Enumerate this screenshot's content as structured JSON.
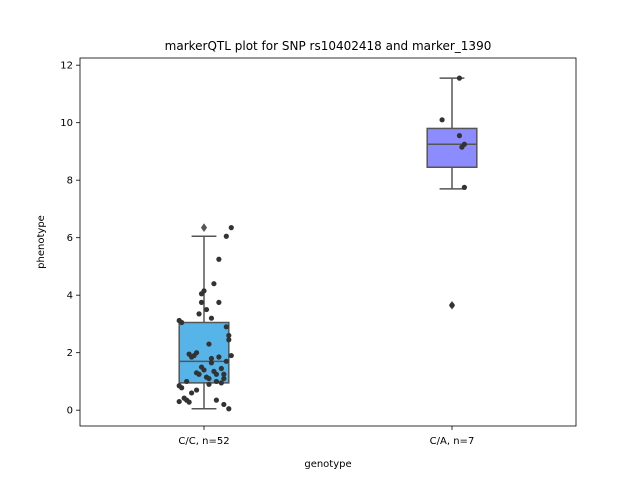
{
  "chart_data": {
    "type": "box",
    "title": "markerQTL plot for SNP rs10402418 and marker_1390",
    "xlabel": "genotype",
    "ylabel": "phenotype",
    "ylim": [
      -0.55,
      12.25
    ],
    "yticks": [
      0,
      2,
      4,
      6,
      8,
      10,
      12
    ],
    "grid": false,
    "categories": [
      "C/C, n=52",
      "C/A, n=7"
    ],
    "colors": [
      "#56b4e9",
      "#8c8cff"
    ],
    "box_edge_color": "#555555",
    "point_color": "#333333",
    "boxes": [
      {
        "category": "C/C, n=52",
        "q1": 0.95,
        "median": 1.7,
        "q3": 3.05,
        "whisker_low": 0.05,
        "whisker_high": 6.05,
        "fliers": [
          6.35
        ],
        "points": [
          {
            "j": -0.1,
            "y": 3.12
          },
          {
            "j": -0.09,
            "y": 3.05
          },
          {
            "j": -0.1,
            "y": 0.85
          },
          {
            "j": -0.09,
            "y": 0.78
          },
          {
            "j": -0.1,
            "y": 0.3
          },
          {
            "j": -0.08,
            "y": 0.42
          },
          {
            "j": -0.07,
            "y": 0.35
          },
          {
            "j": -0.06,
            "y": 0.28
          },
          {
            "j": -0.07,
            "y": 1.0
          },
          {
            "j": -0.06,
            "y": 1.95
          },
          {
            "j": -0.05,
            "y": 1.85
          },
          {
            "j": -0.05,
            "y": 0.6
          },
          {
            "j": -0.04,
            "y": 1.9
          },
          {
            "j": -0.03,
            "y": 1.3
          },
          {
            "j": -0.03,
            "y": 2.0
          },
          {
            "j": -0.03,
            "y": 0.7
          },
          {
            "j": -0.02,
            "y": 1.25
          },
          {
            "j": -0.02,
            "y": 3.35
          },
          {
            "j": -0.01,
            "y": 3.75
          },
          {
            "j": -0.01,
            "y": 4.05
          },
          {
            "j": -0.01,
            "y": 1.5
          },
          {
            "j": 0.0,
            "y": 1.4
          },
          {
            "j": 0.0,
            "y": 4.15
          },
          {
            "j": 0.01,
            "y": 3.5
          },
          {
            "j": 0.01,
            "y": 1.15
          },
          {
            "j": 0.02,
            "y": 1.1
          },
          {
            "j": 0.02,
            "y": 0.9
          },
          {
            "j": 0.02,
            "y": 2.3
          },
          {
            "j": 0.03,
            "y": 3.2
          },
          {
            "j": 0.03,
            "y": 1.8
          },
          {
            "j": 0.03,
            "y": 1.65
          },
          {
            "j": 0.04,
            "y": 4.4
          },
          {
            "j": 0.04,
            "y": 1.35
          },
          {
            "j": 0.05,
            "y": 1.25
          },
          {
            "j": 0.05,
            "y": 1.0
          },
          {
            "j": 0.05,
            "y": 0.35
          },
          {
            "j": 0.06,
            "y": 5.25
          },
          {
            "j": 0.06,
            "y": 1.85
          },
          {
            "j": 0.06,
            "y": 3.75
          },
          {
            "j": 0.07,
            "y": 1.45
          },
          {
            "j": 0.07,
            "y": 0.95
          },
          {
            "j": 0.08,
            "y": 1.25
          },
          {
            "j": 0.08,
            "y": 1.1
          },
          {
            "j": 0.08,
            "y": 0.2
          },
          {
            "j": 0.09,
            "y": 6.05
          },
          {
            "j": 0.09,
            "y": 2.9
          },
          {
            "j": 0.1,
            "y": 2.6
          },
          {
            "j": 0.1,
            "y": 2.45
          },
          {
            "j": 0.1,
            "y": 0.05
          },
          {
            "j": 0.11,
            "y": 1.9
          },
          {
            "j": 0.11,
            "y": 6.35
          },
          {
            "j": 0.09,
            "y": 1.7
          }
        ]
      },
      {
        "category": "C/A, n=7",
        "q1": 8.45,
        "median": 9.25,
        "q3": 9.8,
        "whisker_low": 7.7,
        "whisker_high": 11.55,
        "fliers": [
          3.65
        ],
        "points": [
          {
            "j": -0.04,
            "y": 10.1
          },
          {
            "j": 0.03,
            "y": 11.55
          },
          {
            "j": 0.03,
            "y": 9.55
          },
          {
            "j": 0.04,
            "y": 9.15
          },
          {
            "j": 0.05,
            "y": 9.25
          },
          {
            "j": 0.05,
            "y": 7.75
          },
          {
            "j": 0.0,
            "y": 3.65
          }
        ]
      }
    ]
  }
}
